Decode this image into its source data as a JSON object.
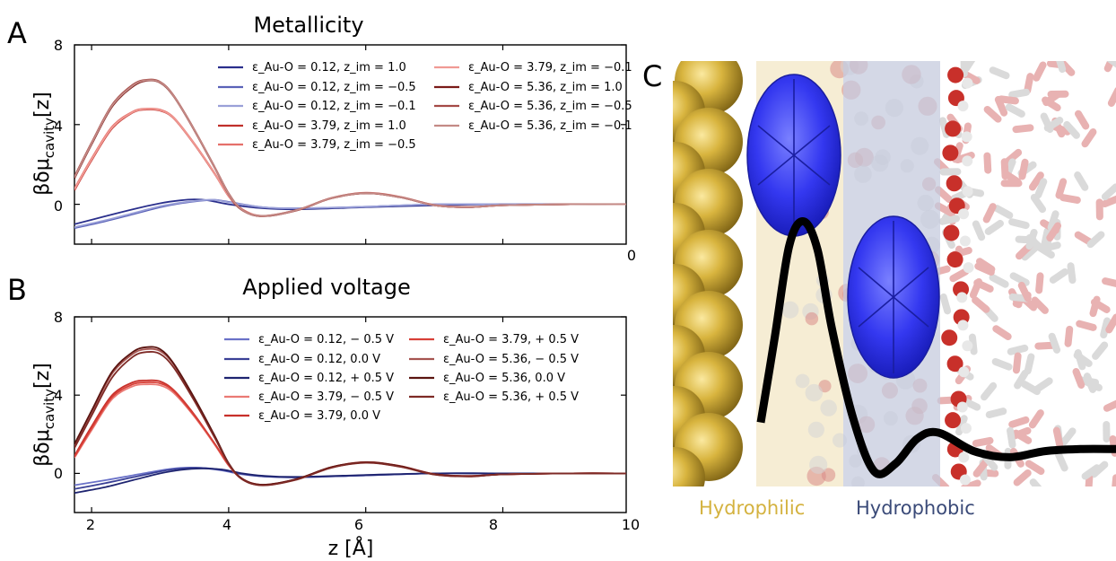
{
  "panels": {
    "a": "A",
    "b": "B",
    "c": "C"
  },
  "colors": {
    "gold": "#d4b23f",
    "navy": "#3a4a78",
    "pale_zone": "#f4e8c8",
    "blue_zone": "#c4c9dc",
    "ellipsoid": "#2a2ef0"
  },
  "chart_data": [
    {
      "type": "line",
      "title": "Metallicity",
      "xlabel": "",
      "ylabel": "βδμ_cavity[z]",
      "xlim": [
        1.75,
        9.8
      ],
      "ylim": [
        -2,
        8
      ],
      "yticks": [
        "0",
        "4",
        "8"
      ],
      "stray_tick_label": "0",
      "legend_position": "top-right (two columns)",
      "series": [
        {
          "name": "ε_Au-O = 0.12, z_im = 1.0",
          "color": "#2a2f8c",
          "x": [
            1.75,
            2.2,
            2.6,
            3.0,
            3.3,
            3.5,
            3.7,
            4.0,
            4.5,
            5.0,
            6.0,
            7.0,
            8.0,
            9.8
          ],
          "y": [
            -1.0,
            -0.6,
            -0.25,
            0.05,
            0.2,
            0.25,
            0.2,
            0.0,
            -0.2,
            -0.25,
            -0.15,
            -0.05,
            0.0,
            0.0
          ]
        },
        {
          "name": "ε_Au-O = 0.12, z_im = −0.5",
          "color": "#5a62b8",
          "x": [
            1.75,
            2.2,
            2.6,
            3.0,
            3.3,
            3.6,
            3.8,
            4.0,
            4.5,
            5.0,
            6.0,
            7.0,
            8.0,
            9.8
          ],
          "y": [
            -1.2,
            -0.85,
            -0.5,
            -0.15,
            0.05,
            0.18,
            0.22,
            0.12,
            -0.15,
            -0.2,
            -0.12,
            0.0,
            0.0,
            0.0
          ]
        },
        {
          "name": "ε_Au-O = 0.12, z_im = −0.1",
          "color": "#9aa0d8",
          "x": [
            1.75,
            2.2,
            2.6,
            3.0,
            3.3,
            3.6,
            3.8,
            4.0,
            4.5,
            5.0,
            6.0,
            7.0,
            8.0,
            9.8
          ],
          "y": [
            -1.15,
            -0.8,
            -0.45,
            -0.1,
            0.08,
            0.2,
            0.22,
            0.1,
            -0.15,
            -0.2,
            -0.12,
            0.0,
            0.0,
            0.0
          ]
        },
        {
          "name": "ε_Au-O = 3.79, z_im = 1.0",
          "color": "#c0302b",
          "x": [
            1.75,
            2.0,
            2.3,
            2.6,
            2.8,
            3.0,
            3.2,
            3.5,
            3.8,
            4.0,
            4.2,
            4.5,
            5.0,
            5.5,
            6.0,
            6.5,
            7.0,
            7.5,
            8.0,
            9.0,
            9.8
          ],
          "y": [
            0.7,
            2.2,
            3.8,
            4.6,
            4.75,
            4.7,
            4.3,
            3.0,
            1.5,
            0.4,
            -0.3,
            -0.6,
            -0.3,
            0.3,
            0.55,
            0.35,
            -0.05,
            -0.15,
            -0.05,
            0.0,
            0.0
          ]
        },
        {
          "name": "ε_Au-O = 3.79, z_im = −0.5",
          "color": "#e5706a",
          "x": [
            1.75,
            2.0,
            2.3,
            2.6,
            2.8,
            3.0,
            3.2,
            3.5,
            3.8,
            4.0,
            4.2,
            4.5,
            5.0,
            5.5,
            6.0,
            6.5,
            7.0,
            7.5,
            8.0,
            9.0,
            9.8
          ],
          "y": [
            0.8,
            2.3,
            3.9,
            4.65,
            4.8,
            4.75,
            4.35,
            3.05,
            1.55,
            0.45,
            -0.25,
            -0.58,
            -0.28,
            0.32,
            0.58,
            0.38,
            -0.03,
            -0.13,
            -0.05,
            0.0,
            0.0
          ]
        },
        {
          "name": "ε_Au-O = 3.79, z_im = −0.1",
          "color": "#f09a94",
          "x": [
            1.75,
            2.0,
            2.3,
            2.6,
            2.8,
            3.0,
            3.2,
            3.5,
            3.8,
            4.0,
            4.2,
            4.5,
            5.0,
            5.5,
            6.0,
            6.5,
            7.0,
            7.5,
            8.0,
            9.0,
            9.8
          ],
          "y": [
            0.75,
            2.25,
            3.85,
            4.62,
            4.78,
            4.72,
            4.32,
            3.02,
            1.52,
            0.42,
            -0.27,
            -0.6,
            -0.3,
            0.3,
            0.56,
            0.36,
            -0.05,
            -0.15,
            -0.05,
            0.0,
            0.0
          ]
        },
        {
          "name": "ε_Au-O = 5.36, z_im = 1.0",
          "color": "#7a1a18",
          "x": [
            1.75,
            2.0,
            2.3,
            2.6,
            2.8,
            3.0,
            3.2,
            3.5,
            3.8,
            4.0,
            4.2,
            4.5,
            5.0,
            5.5,
            6.0,
            6.5,
            7.0,
            7.5,
            8.0,
            9.0,
            9.8
          ],
          "y": [
            1.3,
            3.0,
            4.9,
            5.9,
            6.2,
            6.1,
            5.4,
            3.7,
            1.8,
            0.5,
            -0.3,
            -0.6,
            -0.3,
            0.3,
            0.55,
            0.35,
            -0.05,
            -0.15,
            -0.05,
            0.0,
            0.0
          ]
        },
        {
          "name": "ε_Au-O = 5.36, z_im = −0.5",
          "color": "#a44a46",
          "x": [
            1.75,
            2.0,
            2.3,
            2.6,
            2.8,
            3.0,
            3.2,
            3.5,
            3.8,
            4.0,
            4.2,
            4.5,
            5.0,
            5.5,
            6.0,
            6.5,
            7.0,
            7.5,
            8.0,
            9.0,
            9.8
          ],
          "y": [
            1.4,
            3.1,
            5.0,
            6.0,
            6.25,
            6.15,
            5.45,
            3.75,
            1.85,
            0.55,
            -0.28,
            -0.58,
            -0.28,
            0.32,
            0.57,
            0.37,
            -0.04,
            -0.14,
            -0.05,
            0.0,
            0.0
          ]
        },
        {
          "name": "ε_Au-O = 5.36, z_im = −0.1",
          "color": "#c48a86",
          "x": [
            1.75,
            2.0,
            2.3,
            2.6,
            2.8,
            3.0,
            3.2,
            3.5,
            3.8,
            4.0,
            4.2,
            4.5,
            5.0,
            5.5,
            6.0,
            6.5,
            7.0,
            7.5,
            8.0,
            9.0,
            9.8
          ],
          "y": [
            1.35,
            3.05,
            4.95,
            5.95,
            6.22,
            6.12,
            5.42,
            3.72,
            1.82,
            0.52,
            -0.29,
            -0.59,
            -0.29,
            0.31,
            0.56,
            0.36,
            -0.05,
            -0.15,
            -0.05,
            0.0,
            0.0
          ]
        }
      ]
    },
    {
      "type": "line",
      "title": "Applied voltage",
      "xlabel": "z [Å]",
      "ylabel": "βδμ_cavity[z]",
      "xlim": [
        1.75,
        9.8
      ],
      "ylim": [
        -2,
        8
      ],
      "xticks": [
        "2",
        "4",
        "6",
        "8",
        "10"
      ],
      "yticks": [
        "0",
        "4",
        "8"
      ],
      "legend_position": "top-right (two columns)",
      "series": [
        {
          "name": "ε_Au-O = 0.12, − 0.5 V",
          "color": "#6a72c8",
          "x": [
            1.75,
            2.2,
            2.6,
            3.0,
            3.3,
            3.6,
            3.9,
            4.2,
            4.5,
            5.0,
            6.0,
            7.0,
            8.0,
            9.8
          ],
          "y": [
            -0.6,
            -0.35,
            -0.1,
            0.15,
            0.28,
            0.28,
            0.15,
            -0.05,
            -0.15,
            -0.2,
            -0.1,
            0.0,
            0.0,
            0.0
          ]
        },
        {
          "name": "ε_Au-O = 0.12, 0.0 V",
          "color": "#3a4096",
          "x": [
            1.75,
            2.2,
            2.6,
            3.0,
            3.3,
            3.6,
            3.9,
            4.2,
            4.5,
            5.0,
            6.0,
            7.0,
            8.0,
            9.8
          ],
          "y": [
            -0.8,
            -0.5,
            -0.2,
            0.1,
            0.25,
            0.28,
            0.18,
            -0.02,
            -0.15,
            -0.2,
            -0.1,
            0.0,
            0.0,
            0.0
          ]
        },
        {
          "name": "ε_Au-O = 0.12, + 0.5 V",
          "color": "#1e2470",
          "x": [
            1.75,
            2.2,
            2.6,
            3.0,
            3.3,
            3.6,
            3.9,
            4.2,
            4.5,
            5.0,
            6.0,
            7.0,
            8.0,
            9.8
          ],
          "y": [
            -1.0,
            -0.7,
            -0.35,
            0.0,
            0.18,
            0.25,
            0.2,
            0.0,
            -0.12,
            -0.18,
            -0.08,
            0.0,
            0.0,
            0.0
          ]
        },
        {
          "name": "ε_Au-O = 3.79, − 0.5 V",
          "color": "#ea7a74",
          "x": [
            1.75,
            2.0,
            2.3,
            2.6,
            2.8,
            3.0,
            3.2,
            3.5,
            3.8,
            4.0,
            4.2,
            4.5,
            5.0,
            5.5,
            6.0,
            6.5,
            7.0,
            7.5,
            8.0,
            9.0,
            9.8
          ],
          "y": [
            0.8,
            2.2,
            3.8,
            4.45,
            4.55,
            4.5,
            4.1,
            2.9,
            1.45,
            0.4,
            -0.3,
            -0.6,
            -0.3,
            0.3,
            0.55,
            0.35,
            -0.05,
            -0.15,
            -0.05,
            0.0,
            0.0
          ]
        },
        {
          "name": "ε_Au-O = 3.79, 0.0 V",
          "color": "#c8302a",
          "x": [
            1.75,
            2.0,
            2.3,
            2.6,
            2.8,
            3.0,
            3.2,
            3.5,
            3.8,
            4.0,
            4.2,
            4.5,
            5.0,
            5.5,
            6.0,
            6.5,
            7.0,
            7.5,
            8.0,
            9.0,
            9.8
          ],
          "y": [
            0.9,
            2.4,
            4.0,
            4.65,
            4.75,
            4.7,
            4.25,
            3.0,
            1.5,
            0.45,
            -0.28,
            -0.58,
            -0.28,
            0.32,
            0.58,
            0.38,
            -0.03,
            -0.13,
            -0.05,
            0.0,
            0.0
          ]
        },
        {
          "name": "ε_Au-O = 3.79, + 0.5 V",
          "color": "#d84038",
          "x": [
            1.75,
            2.0,
            2.3,
            2.6,
            2.8,
            3.0,
            3.2,
            3.5,
            3.8,
            4.0,
            4.2,
            4.5,
            5.0,
            5.5,
            6.0,
            6.5,
            7.0,
            7.5,
            8.0,
            9.0,
            9.8
          ],
          "y": [
            0.85,
            2.3,
            3.9,
            4.55,
            4.65,
            4.6,
            4.2,
            2.95,
            1.5,
            0.42,
            -0.29,
            -0.59,
            -0.29,
            0.31,
            0.56,
            0.36,
            -0.04,
            -0.14,
            -0.05,
            0.0,
            0.0
          ]
        },
        {
          "name": "ε_Au-O = 5.36, − 0.5 V",
          "color": "#a65450",
          "x": [
            1.75,
            2.0,
            2.3,
            2.6,
            2.8,
            3.0,
            3.2,
            3.5,
            3.8,
            4.0,
            4.2,
            4.5,
            5.0,
            5.5,
            6.0,
            6.5,
            7.0,
            7.5,
            8.0,
            9.0,
            9.8
          ],
          "y": [
            1.4,
            3.1,
            5.1,
            6.1,
            6.35,
            6.25,
            5.55,
            3.8,
            1.85,
            0.5,
            -0.3,
            -0.6,
            -0.3,
            0.3,
            0.55,
            0.35,
            -0.05,
            -0.15,
            -0.05,
            0.0,
            0.0
          ]
        },
        {
          "name": "ε_Au-O = 5.36, 0.0 V",
          "color": "#5a1410",
          "x": [
            1.75,
            2.0,
            2.3,
            2.6,
            2.8,
            3.0,
            3.2,
            3.5,
            3.8,
            4.0,
            4.2,
            4.5,
            5.0,
            5.5,
            6.0,
            6.5,
            7.0,
            7.5,
            8.0,
            9.0,
            9.8
          ],
          "y": [
            1.5,
            3.2,
            5.2,
            6.2,
            6.45,
            6.35,
            5.6,
            3.85,
            1.9,
            0.52,
            -0.28,
            -0.58,
            -0.28,
            0.32,
            0.57,
            0.37,
            -0.04,
            -0.14,
            -0.05,
            0.0,
            0.0
          ]
        },
        {
          "name": "ε_Au-O = 5.36, + 0.5 V",
          "color": "#7e2a26",
          "x": [
            1.75,
            2.0,
            2.3,
            2.6,
            2.8,
            3.0,
            3.2,
            3.5,
            3.8,
            4.0,
            4.2,
            4.5,
            5.0,
            5.5,
            6.0,
            6.5,
            7.0,
            7.5,
            8.0,
            9.0,
            9.8
          ],
          "y": [
            1.3,
            2.95,
            4.9,
            5.95,
            6.2,
            6.1,
            5.4,
            3.7,
            1.8,
            0.48,
            -0.31,
            -0.61,
            -0.31,
            0.29,
            0.54,
            0.34,
            -0.06,
            -0.16,
            -0.05,
            0.0,
            0.0
          ]
        }
      ]
    }
  ],
  "illustration": {
    "labels": {
      "hydrophilic": "Hydrophilic",
      "hydrophobic": "Hydrophobic"
    },
    "profile": {
      "x": [
        0.0,
        0.4,
        0.8,
        1.2,
        1.6,
        2.0,
        2.6,
        3.2,
        3.8,
        4.4,
        5.0,
        6.0,
        7.0,
        8.0,
        9.0,
        10.0
      ],
      "y": [
        1.3,
        3.4,
        5.6,
        6.2,
        5.5,
        3.6,
        1.4,
        0.1,
        0.3,
        0.9,
        1.05,
        0.6,
        0.45,
        0.6,
        0.65,
        0.65
      ]
    }
  }
}
